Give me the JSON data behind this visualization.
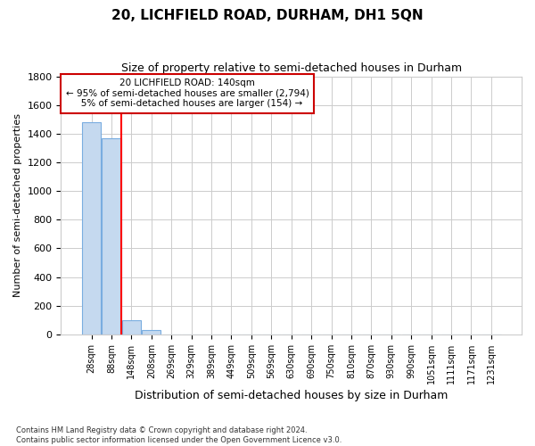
{
  "title": "20, LICHFIELD ROAD, DURHAM, DH1 5QN",
  "subtitle": "Size of property relative to semi-detached houses in Durham",
  "xlabel": "Distribution of semi-detached houses by size in Durham",
  "ylabel": "Number of semi-detached properties",
  "footnote": "Contains HM Land Registry data © Crown copyright and database right 2024.\nContains public sector information licensed under the Open Government Licence v3.0.",
  "bar_labels": [
    "28sqm",
    "88sqm",
    "148sqm",
    "208sqm",
    "269sqm",
    "329sqm",
    "389sqm",
    "449sqm",
    "509sqm",
    "569sqm",
    "630sqm",
    "690sqm",
    "750sqm",
    "810sqm",
    "870sqm",
    "930sqm",
    "990sqm",
    "1051sqm",
    "1111sqm",
    "1171sqm",
    "1231sqm"
  ],
  "bar_values": [
    1480,
    1370,
    100,
    30,
    0,
    0,
    0,
    0,
    0,
    0,
    0,
    0,
    0,
    0,
    0,
    0,
    0,
    0,
    0,
    0,
    0
  ],
  "bar_color": "#c5d9ef",
  "bar_edge_color": "#7aade0",
  "red_line_x": 1.5,
  "ylim": [
    0,
    1800
  ],
  "yticks": [
    0,
    200,
    400,
    600,
    800,
    1000,
    1200,
    1400,
    1600,
    1800
  ],
  "annotation_text": "20 LICHFIELD ROAD: 140sqm\n← 95% of semi-detached houses are smaller (2,794)\n   5% of semi-detached houses are larger (154) →",
  "annotation_box_color": "#ffffff",
  "annotation_border_color": "#cc0000",
  "background_color": "#ffffff",
  "grid_color": "#cccccc"
}
